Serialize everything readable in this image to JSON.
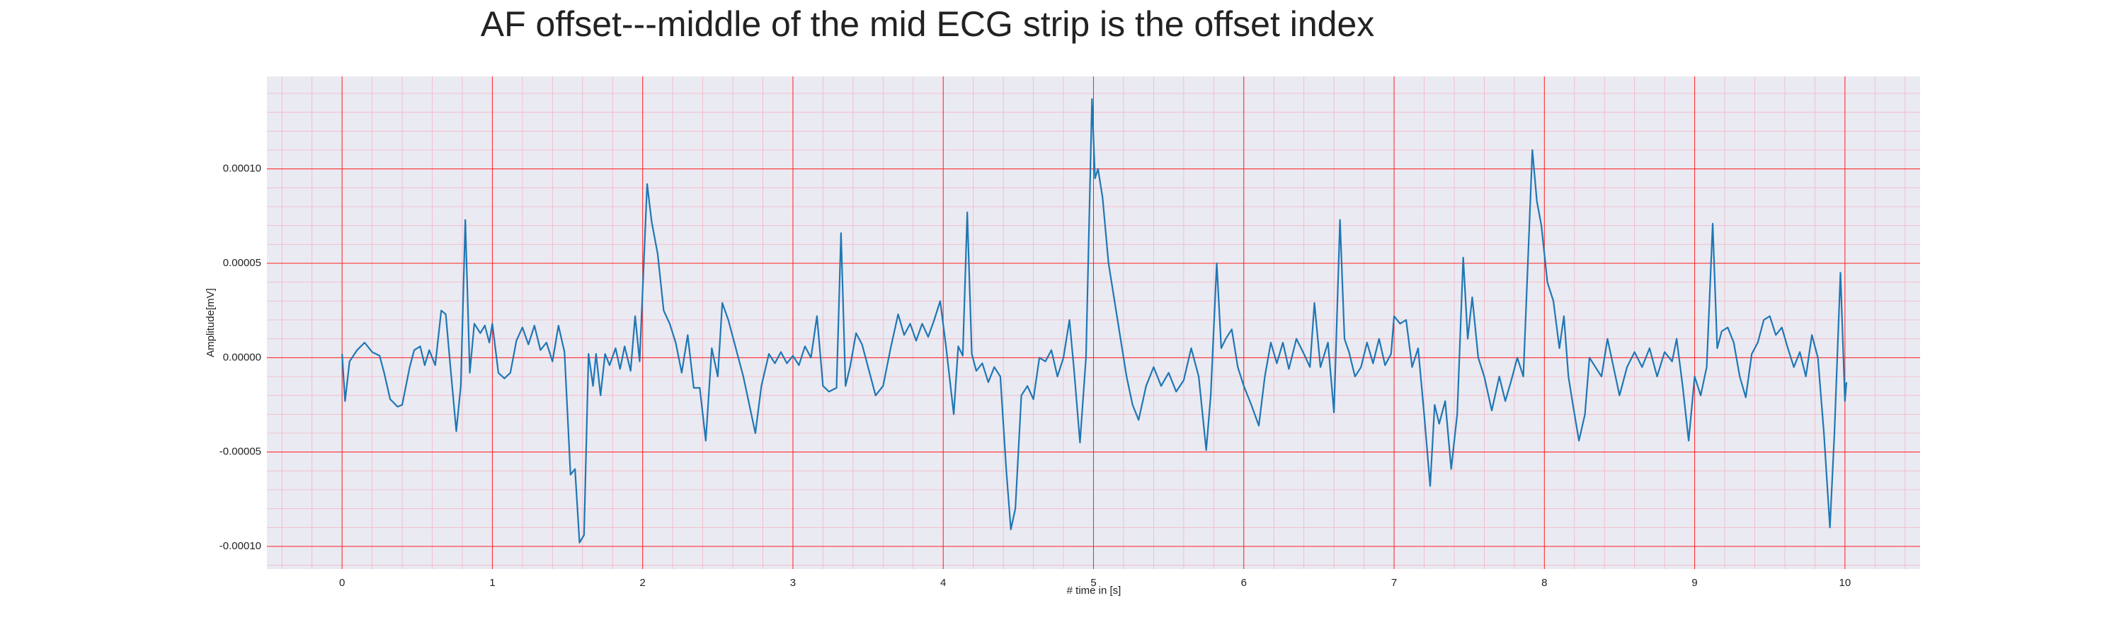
{
  "chart_data": {
    "type": "line",
    "title": "AF offset---middle of the mid ECG strip is the offset index",
    "x_label": "# time in [s]",
    "y_label": "Amplitude[mV]",
    "xlim": [
      -0.5,
      10.5
    ],
    "ylim": [
      -0.000112,
      0.000149
    ],
    "xticks": [
      0,
      1,
      2,
      3,
      4,
      5,
      6,
      7,
      8,
      9,
      10
    ],
    "yticks": [
      {
        "value": -0.0001,
        "label": "-0.00010"
      },
      {
        "value": -5e-05,
        "label": "-0.00005"
      },
      {
        "value": 0,
        "label": "0.00000"
      },
      {
        "value": 5e-05,
        "label": "0.00005"
      },
      {
        "value": 0.0001,
        "label": "0.00010"
      }
    ],
    "grid": true,
    "minor_grid": true,
    "background": "#eaeaf2",
    "grid_color": "#ff2020",
    "minor_grid_color": "#f3b6c4",
    "series": [
      {
        "color": "#1f77b4",
        "x": [
          0,
          0.02,
          0.05,
          0.1,
          0.15,
          0.2,
          0.25,
          0.28,
          0.32,
          0.37,
          0.4,
          0.45,
          0.48,
          0.52,
          0.55,
          0.58,
          0.62,
          0.66,
          0.69,
          0.72,
          0.76,
          0.79,
          0.82,
          0.85,
          0.88,
          0.92,
          0.95,
          0.98,
          1.0,
          1.04,
          1.08,
          1.12,
          1.16,
          1.2,
          1.24,
          1.28,
          1.32,
          1.36,
          1.4,
          1.44,
          1.48,
          1.52,
          1.55,
          1.58,
          1.61,
          1.64,
          1.67,
          1.69,
          1.72,
          1.75,
          1.78,
          1.82,
          1.85,
          1.88,
          1.92,
          1.95,
          1.98,
          2.03,
          2.06,
          2.1,
          2.14,
          2.18,
          2.22,
          2.26,
          2.3,
          2.34,
          2.38,
          2.42,
          2.46,
          2.5,
          2.53,
          2.57,
          2.62,
          2.67,
          2.71,
          2.75,
          2.79,
          2.84,
          2.88,
          2.92,
          2.96,
          3.0,
          3.04,
          3.08,
          3.12,
          3.16,
          3.2,
          3.24,
          3.29,
          3.32,
          3.35,
          3.38,
          3.42,
          3.46,
          3.5,
          3.55,
          3.6,
          3.65,
          3.7,
          3.74,
          3.78,
          3.82,
          3.86,
          3.9,
          3.94,
          3.98,
          4.02,
          4.07,
          4.1,
          4.13,
          4.16,
          4.19,
          4.22,
          4.26,
          4.3,
          4.34,
          4.38,
          4.42,
          4.45,
          4.48,
          4.52,
          4.56,
          4.6,
          4.64,
          4.68,
          4.72,
          4.76,
          4.8,
          4.84,
          4.87,
          4.91,
          4.95,
          4.99,
          5.01,
          5.03,
          5.06,
          5.1,
          5.14,
          5.18,
          5.22,
          5.26,
          5.3,
          5.35,
          5.4,
          5.45,
          5.5,
          5.55,
          5.6,
          5.65,
          5.7,
          5.75,
          5.78,
          5.82,
          5.85,
          5.88,
          5.92,
          5.96,
          6.0,
          6.05,
          6.1,
          6.14,
          6.18,
          6.22,
          6.26,
          6.3,
          6.35,
          6.4,
          6.44,
          6.47,
          6.51,
          6.56,
          6.6,
          6.64,
          6.67,
          6.7,
          6.74,
          6.78,
          6.82,
          6.86,
          6.9,
          6.94,
          6.98,
          7.0,
          7.04,
          7.08,
          7.12,
          7.16,
          7.2,
          7.24,
          7.27,
          7.3,
          7.34,
          7.38,
          7.42,
          7.46,
          7.49,
          7.52,
          7.56,
          7.6,
          7.65,
          7.7,
          7.74,
          7.78,
          7.82,
          7.86,
          7.92,
          7.95,
          7.98,
          8.02,
          8.06,
          8.1,
          8.13,
          8.16,
          8.19,
          8.23,
          8.27,
          8.3,
          8.34,
          8.38,
          8.42,
          8.46,
          8.5,
          8.55,
          8.6,
          8.65,
          8.7,
          8.75,
          8.8,
          8.85,
          8.88,
          8.92,
          8.96,
          9.0,
          9.04,
          9.08,
          9.12,
          9.15,
          9.18,
          9.22,
          9.26,
          9.3,
          9.34,
          9.38,
          9.42,
          9.46,
          9.5,
          9.54,
          9.58,
          9.62,
          9.66,
          9.7,
          9.74,
          9.78,
          9.82,
          9.86,
          9.9,
          9.93,
          9.97,
          10.0,
          10.01
        ],
        "values": [
          2e-06,
          -2.3e-05,
          -2e-06,
          4e-06,
          8e-06,
          3e-06,
          1e-06,
          -8e-06,
          -2.2e-05,
          -2.6e-05,
          -2.5e-05,
          -5e-06,
          4e-06,
          6e-06,
          -4e-06,
          4e-06,
          -4e-06,
          2.5e-05,
          2.3e-05,
          -4e-06,
          -3.9e-05,
          -1.5e-05,
          7.3e-05,
          -8e-06,
          1.8e-05,
          1.3e-05,
          1.7e-05,
          8e-06,
          1.8e-05,
          -8e-06,
          -1.1e-05,
          -8e-06,
          9e-06,
          1.6e-05,
          7e-06,
          1.7e-05,
          4e-06,
          8e-06,
          -2e-06,
          1.7e-05,
          3e-06,
          -6.2e-05,
          -5.9e-05,
          -9.8e-05,
          -9.4e-05,
          2e-06,
          -1.5e-05,
          2e-06,
          -2e-05,
          2e-06,
          -4e-06,
          5e-06,
          -6e-06,
          6e-06,
          -7e-06,
          2.2e-05,
          -2e-06,
          9.2e-05,
          7.2e-05,
          5.5e-05,
          2.5e-05,
          1.8e-05,
          8e-06,
          -8e-06,
          1.2e-05,
          -1.6e-05,
          -1.6e-05,
          -4.4e-05,
          5e-06,
          -1e-05,
          2.9e-05,
          2e-05,
          5e-06,
          -1e-05,
          -2.5e-05,
          -4e-05,
          -1.5e-05,
          2e-06,
          -3e-06,
          3e-06,
          -3e-06,
          1e-06,
          -4e-06,
          6e-06,
          0,
          2.2e-05,
          -1.5e-05,
          -1.8e-05,
          -1.6e-05,
          6.6e-05,
          -1.5e-05,
          -5e-06,
          1.3e-05,
          7e-06,
          -5e-06,
          -2e-05,
          -1.5e-05,
          5e-06,
          2.3e-05,
          1.2e-05,
          1.8e-05,
          9e-06,
          1.8e-05,
          1.1e-05,
          2e-05,
          3e-05,
          5e-06,
          -3e-05,
          6e-06,
          1e-06,
          7.7e-05,
          2e-06,
          -7e-06,
          -3e-06,
          -1.3e-05,
          -5e-06,
          -1e-05,
          -6e-05,
          -9.1e-05,
          -8e-05,
          -2e-05,
          -1.5e-05,
          -2.2e-05,
          0,
          -2e-06,
          4e-06,
          -1e-05,
          0,
          2e-05,
          -6e-06,
          -4.5e-05,
          0,
          0.000137,
          9.5e-05,
          0.0001,
          8.5e-05,
          5e-05,
          3e-05,
          1e-05,
          -1e-05,
          -2.5e-05,
          -3.3e-05,
          -1.5e-05,
          -5e-06,
          -1.5e-05,
          -8e-06,
          -1.8e-05,
          -1.2e-05,
          5e-06,
          -1e-05,
          -4.9e-05,
          -2e-05,
          5e-05,
          5e-06,
          1e-05,
          1.5e-05,
          -5e-06,
          -1.5e-05,
          -2.5e-05,
          -3.6e-05,
          -1e-05,
          8e-06,
          -3e-06,
          8e-06,
          -6e-06,
          1e-05,
          2e-06,
          -5e-06,
          2.9e-05,
          -5e-06,
          8e-06,
          -2.9e-05,
          7.3e-05,
          1e-05,
          3e-06,
          -1e-05,
          -5e-06,
          8e-06,
          -3e-06,
          1e-05,
          -4e-06,
          2e-06,
          2.2e-05,
          1.8e-05,
          2e-05,
          -5e-06,
          5e-06,
          -3e-05,
          -6.8e-05,
          -2.5e-05,
          -3.5e-05,
          -2.3e-05,
          -5.9e-05,
          -3e-05,
          5.3e-05,
          1e-05,
          3.2e-05,
          0,
          -1e-05,
          -2.8e-05,
          -1e-05,
          -2.3e-05,
          -1.2e-05,
          0,
          -1e-05,
          0.00011,
          8.3e-05,
          7e-05,
          4e-05,
          3e-05,
          5e-06,
          2.2e-05,
          -1e-05,
          -2.5e-05,
          -4.4e-05,
          -3e-05,
          0,
          -5e-06,
          -1e-05,
          1e-05,
          -5e-06,
          -2e-05,
          -5e-06,
          3e-06,
          -5e-06,
          5e-06,
          -1e-05,
          3e-06,
          -2e-06,
          1e-05,
          -1.5e-05,
          -4.4e-05,
          -1e-05,
          -2e-05,
          -5e-06,
          7.1e-05,
          5e-06,
          1.4e-05,
          1.6e-05,
          8e-06,
          -1e-05,
          -2.1e-05,
          2e-06,
          8e-06,
          2e-05,
          2.2e-05,
          1.2e-05,
          1.6e-05,
          5e-06,
          -5e-06,
          3e-06,
          -1e-05,
          1.2e-05,
          0,
          -4e-05,
          -9e-05,
          -4e-05,
          4.5e-05,
          -2.3e-05,
          -1.3e-05
        ]
      }
    ]
  }
}
